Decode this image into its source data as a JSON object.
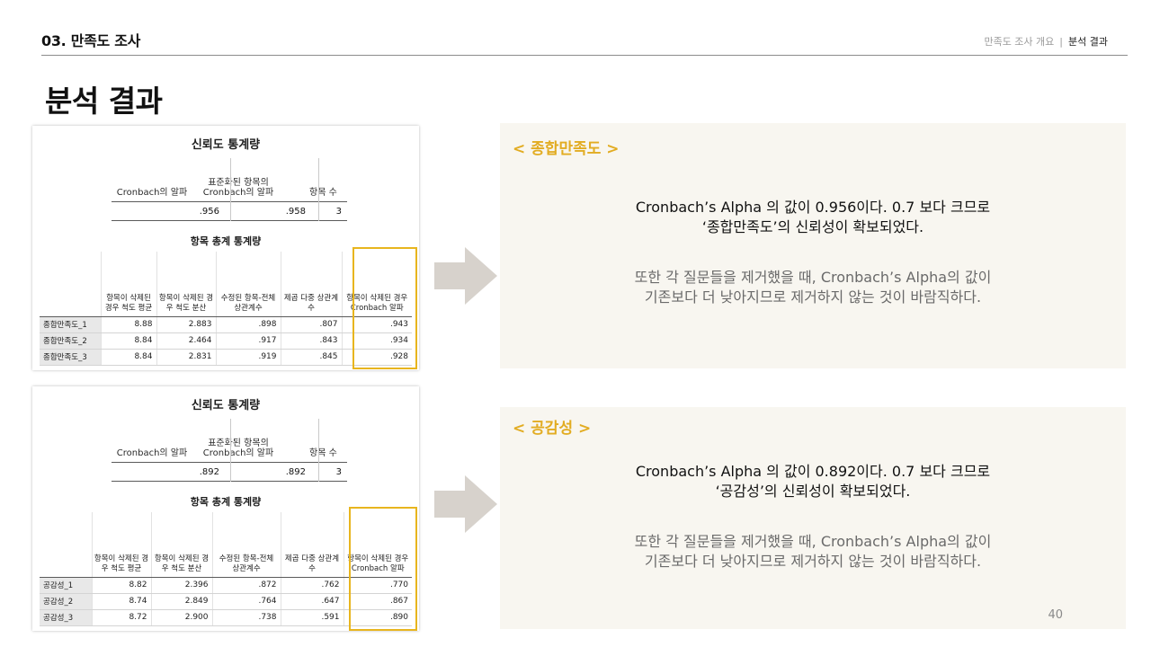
{
  "header": {
    "section": "03. 만족도 조사",
    "breadcrumb": [
      "만족도 조사 개요",
      "분석 결과"
    ],
    "separator": "|"
  },
  "page_title": "분석 결과",
  "tables": [
    {
      "reliability_title": "신뢰도 통계량",
      "reliability_headers": [
        "Cronbach의 알파",
        "표준화된 항목의 Cronbach의 알파",
        "항목 수"
      ],
      "reliability_values": [
        ".956",
        ".958",
        "3"
      ],
      "item_title": "항목 총계 통계량",
      "item_headers": [
        "",
        "항목이 삭제된 경우 척도 평균",
        "항목이 삭제된 경우 척도 분산",
        "수정된 항목-전체 상관계수",
        "제곱 다중 상관계수",
        "항목이 삭제된 경우 Cronbach 알파"
      ],
      "rows": [
        [
          "종합만족도_1",
          "8.88",
          "2.883",
          ".898",
          ".807",
          ".943"
        ],
        [
          "종합만족도_2",
          "8.84",
          "2.464",
          ".917",
          ".843",
          ".934"
        ],
        [
          "종합만족도_3",
          "8.84",
          "2.831",
          ".919",
          ".845",
          ".928"
        ]
      ]
    },
    {
      "reliability_title": "신뢰도 통계량",
      "reliability_headers": [
        "Cronbach의 알파",
        "표준화된 항목의 Cronbach의 알파",
        "항목 수"
      ],
      "reliability_values": [
        ".892",
        ".892",
        "3"
      ],
      "item_title": "항목 총계 통계량",
      "item_headers": [
        "",
        "항목이 삭제된 경우 척도 평균",
        "항목이 삭제된 경우 척도 분산",
        "수정된 항목-전체 상관계수",
        "제곱 다중 상관계수",
        "항목이 삭제된 경우 Cronbach 알파"
      ],
      "rows": [
        [
          "공감성_1",
          "8.82",
          "2.396",
          ".872",
          ".762",
          ".770"
        ],
        [
          "공감성_2",
          "8.74",
          "2.849",
          ".764",
          ".647",
          ".867"
        ],
        [
          "공감성_3",
          "8.72",
          "2.900",
          ".738",
          ".591",
          ".890"
        ]
      ]
    }
  ],
  "notes": [
    {
      "heading": "< 종합만족도 >",
      "main_lines": [
        "Cronbach’s Alpha 의 값이 0.956이다. 0.7 보다 크므로",
        "‘종합만족도’의 신뢰성이 확보되었다."
      ],
      "sub_lines": [
        "또한 각 질문들을 제거했을 때, Cronbach’s Alpha의 값이",
        "기존보다 더 낮아지므로 제거하지 않는 것이 바람직하다."
      ]
    },
    {
      "heading": "< 공감성 >",
      "main_lines": [
        "Cronbach’s Alpha 의 값이 0.892이다. 0.7 보다 크므로",
        "‘공감성’의 신뢰성이 확보되었다."
      ],
      "sub_lines": [
        "또한 각 질문들을 제거했을 때, Cronbach’s Alpha의 값이",
        "기존보다 더 낮아지므로 제거하지 않는 것이 바람직하다."
      ]
    }
  ],
  "page_number": "40",
  "colors": {
    "accent": "#e2ac22",
    "highlight_border": "#e8b51e",
    "note_background": "#f8f6f0",
    "arrow": "#d7d2cc"
  }
}
